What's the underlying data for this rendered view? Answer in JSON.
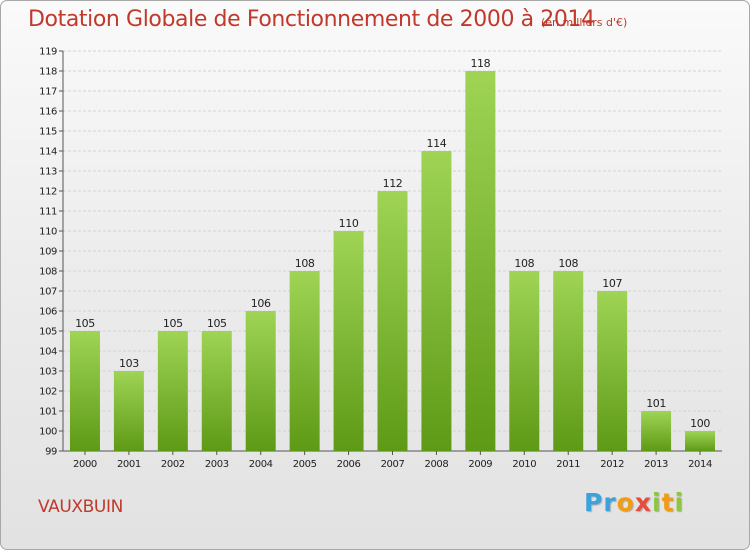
{
  "chart_data": {
    "type": "bar",
    "title": "Dotation Globale de Fonctionnement de 2000 à 2014",
    "subtitle": "(en milliers d'€)",
    "categories": [
      "2000",
      "2001",
      "2002",
      "2003",
      "2004",
      "2005",
      "2006",
      "2007",
      "2008",
      "2009",
      "2010",
      "2011",
      "2012",
      "2013",
      "2014"
    ],
    "values": [
      105,
      103,
      105,
      105,
      106,
      108,
      110,
      112,
      114,
      118,
      108,
      108,
      107,
      101,
      100
    ],
    "xlabel": "",
    "ylabel": "",
    "ylim": [
      99,
      119
    ],
    "yticks": [
      99,
      100,
      101,
      102,
      103,
      104,
      105,
      106,
      107,
      108,
      109,
      110,
      111,
      112,
      113,
      114,
      115,
      116,
      117,
      118,
      119
    ],
    "grid": true,
    "legend": "none"
  },
  "footer": {
    "commune": "VAUXBUIN",
    "logo_parts": [
      "Pr",
      "o",
      "x",
      "i",
      "t",
      "i"
    ]
  },
  "colors": {
    "title": "#c0392b",
    "bar_light": "#9fd455",
    "bar_dark": "#5e9a16",
    "grid": "#d3d3d3",
    "axis": "#555555"
  }
}
